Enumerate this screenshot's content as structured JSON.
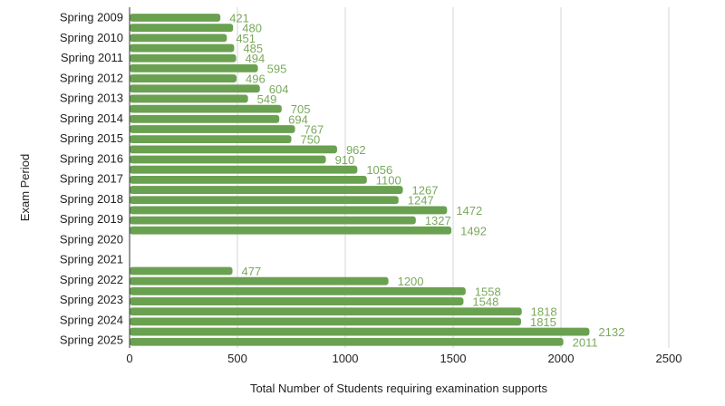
{
  "chart_data": {
    "type": "bar",
    "orientation": "horizontal",
    "title": "",
    "xlabel": "Total Number of Students requiring examination supports",
    "ylabel": "Exam Period",
    "xlim": [
      0,
      2500
    ],
    "xticks": [
      0,
      500,
      1000,
      1500,
      2000,
      2500
    ],
    "grid": "vertical",
    "bar_color": "#6aa150",
    "label_color": "#7aa95c",
    "categories": [
      "Spring 2009",
      "Spring 2010",
      "Spring 2011",
      "Spring 2012",
      "Spring 2013",
      "Spring 2014",
      "Spring 2015",
      "Spring 2016",
      "Spring 2017",
      "Spring 2018",
      "Spring 2019",
      "Spring 2020",
      "Spring 2021",
      "Spring 2022",
      "Spring 2023",
      "Spring 2024",
      "Spring 2025"
    ],
    "bars": [
      {
        "period": "Spring 2009",
        "value": 421
      },
      {
        "period": "Spring 2009",
        "value": 480
      },
      {
        "period": "Spring 2010",
        "value": 451
      },
      {
        "period": "Spring 2010",
        "value": 485
      },
      {
        "period": "Spring 2011",
        "value": 494
      },
      {
        "period": "Spring 2011",
        "value": 595
      },
      {
        "period": "Spring 2012",
        "value": 496
      },
      {
        "period": "Spring 2012",
        "value": 604
      },
      {
        "period": "Spring 2013",
        "value": 549
      },
      {
        "period": "Spring 2013",
        "value": 705
      },
      {
        "period": "Spring 2014",
        "value": 694
      },
      {
        "period": "Spring 2014",
        "value": 767
      },
      {
        "period": "Spring 2015",
        "value": 750
      },
      {
        "period": "Spring 2015",
        "value": 962
      },
      {
        "period": "Spring 2016",
        "value": 910
      },
      {
        "period": "Spring 2016",
        "value": 1056
      },
      {
        "period": "Spring 2017",
        "value": 1100
      },
      {
        "period": "Spring 2017",
        "value": 1267
      },
      {
        "period": "Spring 2018",
        "value": 1247
      },
      {
        "period": "Spring 2018",
        "value": 1472
      },
      {
        "period": "Spring 2019",
        "value": 1327
      },
      {
        "period": "Spring 2019",
        "value": 1492
      },
      {
        "period": "Spring 2020",
        "value": null
      },
      {
        "period": "Spring 2020",
        "value": null
      },
      {
        "period": "Spring 2021",
        "value": null
      },
      {
        "period": "Spring 2021",
        "value": 477
      },
      {
        "period": "Spring 2022",
        "value": 1200
      },
      {
        "period": "Spring 2022",
        "value": 1558
      },
      {
        "period": "Spring 2023",
        "value": 1548
      },
      {
        "period": "Spring 2023",
        "value": 1818
      },
      {
        "period": "Spring 2024",
        "value": 1815
      },
      {
        "period": "Spring 2024",
        "value": 2132
      },
      {
        "period": "Spring 2025",
        "value": 2011
      }
    ]
  }
}
